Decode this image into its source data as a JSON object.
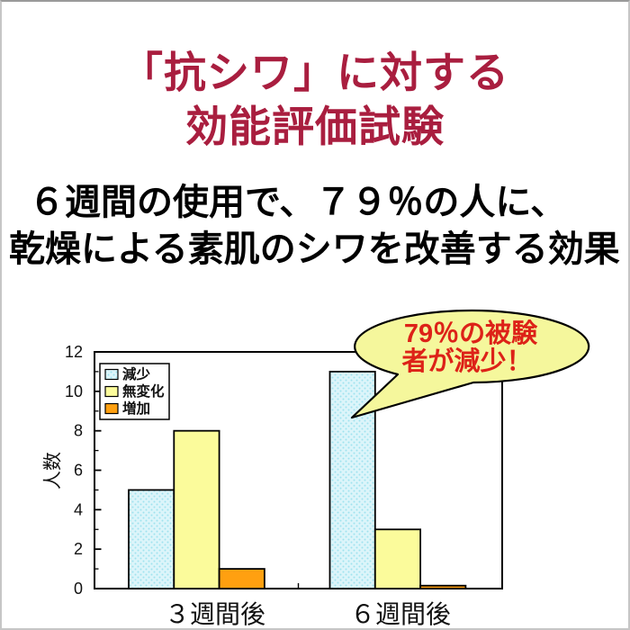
{
  "page": {
    "title_line1": "「抗シワ」に対する",
    "title_line2": "効能評価試験",
    "title_color": "#A91E3F",
    "subtitle_line1": "６週間の使用で、７９％の人に、",
    "subtitle_line2": "乾燥による素肌のシワを改善する効果"
  },
  "chart_data": {
    "type": "bar",
    "title": "",
    "categories": [
      "３週間後",
      "６週間後"
    ],
    "series": [
      {
        "name": "減少",
        "values": [
          5,
          11
        ],
        "color": "#DCF5FA",
        "pattern": "dots",
        "pattern_dot_color": "#9FE2EF"
      },
      {
        "name": "無変化",
        "values": [
          8,
          3
        ],
        "color": "#FBFB9B"
      },
      {
        "name": "増加",
        "values": [
          1,
          0.15
        ],
        "color": "#FFA010"
      }
    ],
    "xlabel": "",
    "ylabel": "人数",
    "ylim": [
      0,
      12
    ],
    "ytick_step": 2,
    "yticks": [
      0,
      2,
      4,
      6,
      8,
      10,
      12
    ],
    "grid": "off",
    "legend_position": "upper-left",
    "annotation": {
      "shape": "speech-bubble",
      "text_line1": "79％の被験",
      "text_line2": "者が減少！",
      "fill": "#F5F79C",
      "border_color": "#000000",
      "text_color": "#DD2218",
      "points_to": "series 減少, category ６週間後"
    }
  }
}
